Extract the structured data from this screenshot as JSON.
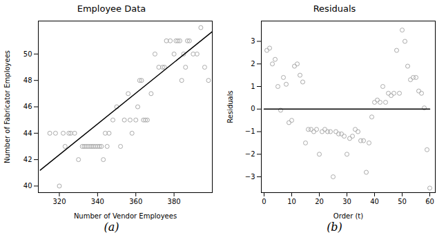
{
  "chart_data": [
    {
      "type": "scatter",
      "title": "Employee Data",
      "caption": "(a)",
      "xlabel": "Number of Vendor Employees",
      "ylabel": "Number of Fabricator Employees",
      "series": [
        {
          "type": "scatter",
          "color": "#aaaaaa",
          "marker": "circle",
          "x": [
            315,
            318,
            320,
            322,
            323,
            325,
            326,
            328,
            330,
            332,
            333,
            334,
            335,
            336,
            337,
            338,
            339,
            340,
            341,
            342,
            343,
            344,
            345,
            346,
            348,
            350,
            352,
            354,
            356,
            357,
            358,
            360,
            361,
            362,
            363,
            364,
            365,
            366,
            368,
            370,
            372,
            374,
            375,
            376,
            378,
            380,
            381,
            382,
            383,
            384,
            385,
            386,
            387,
            388,
            390,
            392,
            394,
            396,
            398
          ],
          "values": [
            44,
            44,
            40,
            44,
            43,
            44,
            44,
            44,
            42,
            43,
            43,
            43,
            43,
            43,
            43,
            43,
            43,
            43,
            43,
            43,
            42,
            44,
            43,
            44,
            45,
            46,
            43,
            45,
            47,
            45,
            44,
            45,
            46,
            48,
            48,
            45,
            45,
            45,
            47,
            50,
            49,
            49,
            49,
            51,
            51,
            50,
            51,
            51,
            51,
            48,
            50,
            49,
            51,
            51,
            50,
            50,
            52,
            49,
            48
          ]
        },
        {
          "type": "line",
          "color": "#000000",
          "line_style": "solid",
          "x": [
            310,
            400
          ],
          "values": [
            41.2,
            51.7
          ]
        }
      ],
      "xlim": [
        309,
        400
      ],
      "ylim": [
        39.5,
        52.5
      ],
      "xticks": [
        320,
        340,
        360,
        380
      ],
      "yticks": [
        40,
        42,
        44,
        46,
        48,
        50
      ],
      "grid": false
    },
    {
      "type": "scatter",
      "title": "Residuals",
      "caption": "(b)",
      "xlabel": "Order (t)",
      "ylabel": "Residuals",
      "series": [
        {
          "type": "scatter",
          "color": "#aaaaaa",
          "marker": "circle",
          "x": [
            1,
            2,
            3,
            4,
            5,
            6,
            7,
            8,
            9,
            10,
            11,
            12,
            13,
            14,
            15,
            16,
            17,
            18,
            19,
            20,
            21,
            22,
            23,
            24,
            25,
            26,
            27,
            28,
            29,
            30,
            31,
            32,
            33,
            34,
            35,
            36,
            37,
            38,
            39,
            40,
            41,
            42,
            43,
            44,
            45,
            46,
            47,
            48,
            49,
            50,
            51,
            52,
            53,
            54,
            55,
            56,
            57,
            58,
            59,
            60
          ],
          "values": [
            2.6,
            2.7,
            2.0,
            2.2,
            1.0,
            -0.05,
            1.4,
            1.1,
            -0.6,
            -0.5,
            1.9,
            2.0,
            1.5,
            1.2,
            -1.5,
            -0.9,
            -0.9,
            -1.0,
            -0.9,
            -2.0,
            -1.0,
            -0.9,
            -1.0,
            -1.0,
            -3.0,
            -1.0,
            -1.1,
            -1.1,
            -1.2,
            -2.0,
            -1.3,
            -1.2,
            -0.9,
            -1.0,
            -1.4,
            -1.4,
            -2.8,
            -1.5,
            -0.35,
            0.3,
            0.4,
            0.3,
            1.0,
            0.3,
            0.7,
            0.6,
            0.7,
            2.6,
            0.7,
            3.5,
            3.0,
            1.9,
            1.3,
            1.4,
            1.4,
            0.8,
            0.7,
            0.05,
            -1.8,
            -3.5
          ]
        },
        {
          "type": "line",
          "color": "#000000",
          "line_style": "solid",
          "x": [
            0,
            60
          ],
          "values": [
            0,
            0
          ]
        }
      ],
      "xlim": [
        -1,
        62
      ],
      "ylim": [
        -3.7,
        3.9
      ],
      "xticks": [
        0,
        10,
        20,
        30,
        40,
        50,
        60
      ],
      "yticks": [
        -3,
        -2,
        -1,
        0,
        1,
        2,
        3
      ],
      "grid": false
    }
  ]
}
